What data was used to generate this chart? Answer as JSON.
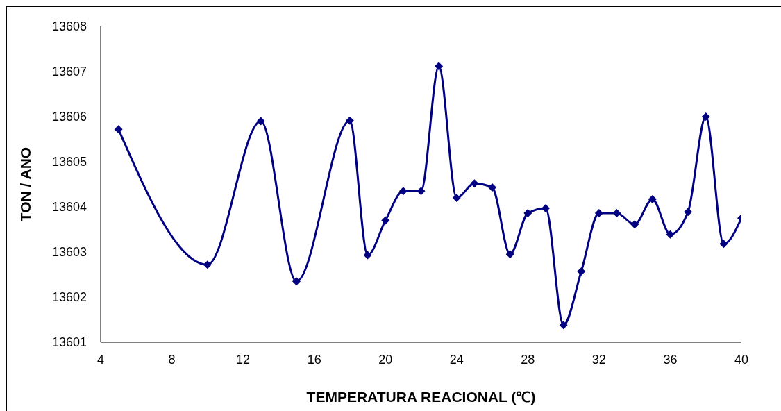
{
  "chart_data": {
    "type": "line",
    "xlabel": "TEMPERATURA REACIONAL (℃)",
    "ylabel": "TON / ANO",
    "x": [
      5,
      10,
      13,
      15,
      18,
      19,
      20,
      21,
      22,
      23,
      24,
      25,
      26,
      27,
      28,
      29,
      30,
      31,
      32,
      33,
      34,
      35,
      36,
      37,
      38,
      39,
      40
    ],
    "series": [
      {
        "color": "#000080",
        "values": [
          13605.72,
          13602.72,
          13605.9,
          13602.35,
          13605.91,
          13602.93,
          13603.7,
          13604.35,
          13604.35,
          13607.12,
          13604.2,
          13604.52,
          13604.43,
          13602.95,
          13603.86,
          13603.97,
          13601.38,
          13602.57,
          13603.86,
          13603.86,
          13603.61,
          13604.17,
          13603.39,
          13603.89,
          13606.0,
          13603.18,
          13603.75
        ]
      }
    ],
    "xlim": [
      4,
      40
    ],
    "xticks": [
      4,
      8,
      12,
      16,
      20,
      24,
      28,
      32,
      36,
      40
    ],
    "ylim": [
      13601,
      13608
    ],
    "yticks": [
      13601,
      13602,
      13603,
      13604,
      13605,
      13606,
      13607,
      13608
    ],
    "grid": false,
    "legend": false,
    "marker": "diamond",
    "line_style": "solid"
  }
}
